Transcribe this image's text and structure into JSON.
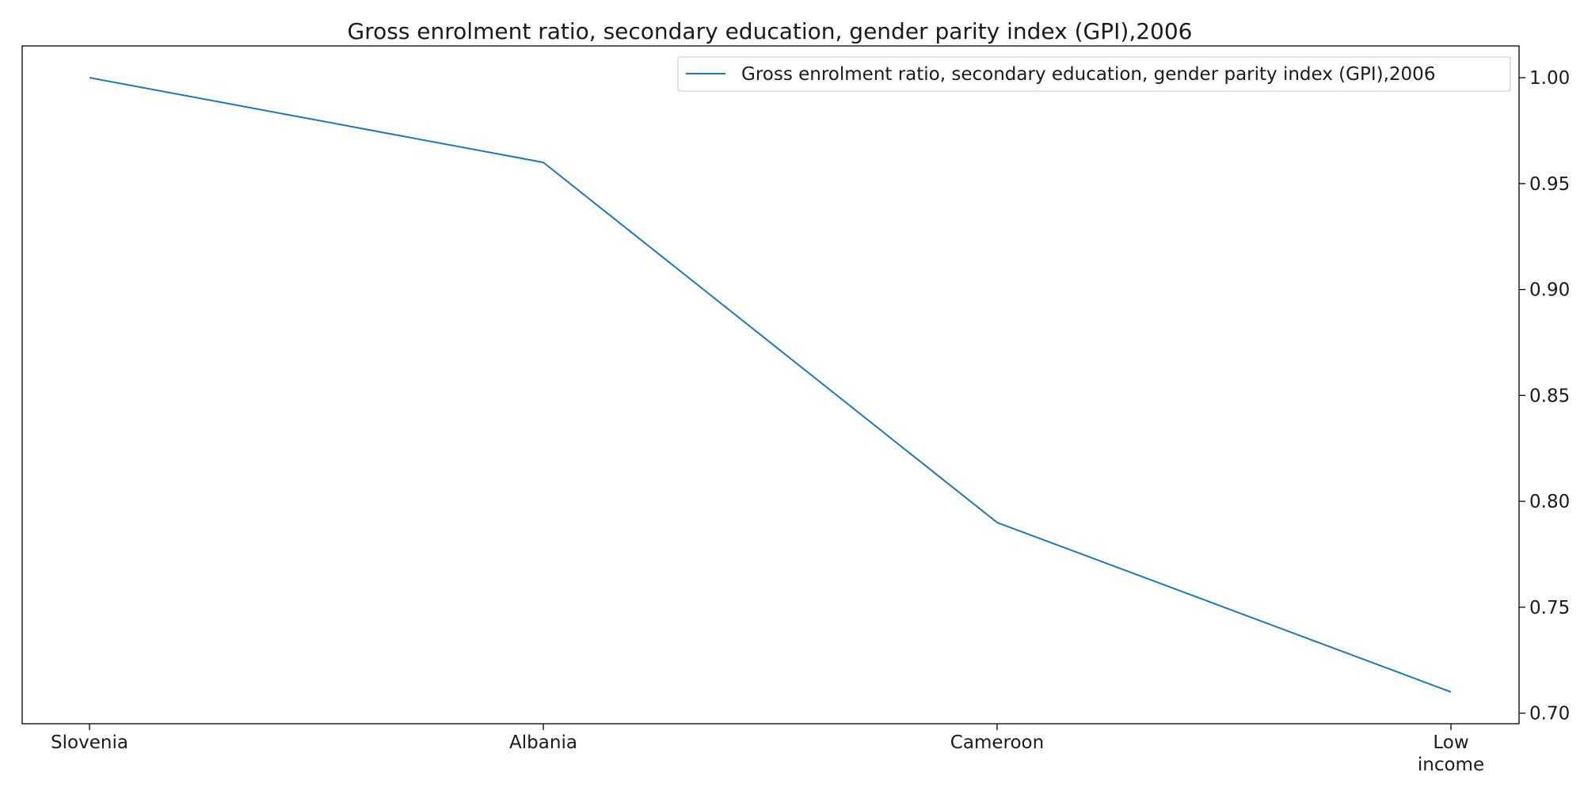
{
  "chart_data": {
    "type": "line",
    "title": "Gross enrolment ratio, secondary education, gender parity index (GPI),2006",
    "xlabel": "",
    "ylabel": "",
    "categories": [
      [
        "Slovenia"
      ],
      [
        "Albania"
      ],
      [
        "Cameroon"
      ],
      [
        "Low",
        "income"
      ]
    ],
    "series": [
      {
        "name": "Gross enrolment ratio, secondary education, gender parity index (GPI),2006",
        "values": [
          1.0,
          0.96,
          0.79,
          0.71
        ],
        "color": "#1f77b4"
      }
    ],
    "ylim": [
      0.695,
      1.015
    ],
    "yticks": [
      {
        "value": 0.7,
        "label": "0.70"
      },
      {
        "value": 0.75,
        "label": "0.75"
      },
      {
        "value": 0.8,
        "label": "0.80"
      },
      {
        "value": 0.85,
        "label": "0.85"
      },
      {
        "value": 0.9,
        "label": "0.90"
      },
      {
        "value": 0.95,
        "label": "0.95"
      },
      {
        "value": 1.0,
        "label": "1.00"
      }
    ],
    "y_axis_side": "right",
    "grid": false,
    "legend_position": "top-right"
  }
}
